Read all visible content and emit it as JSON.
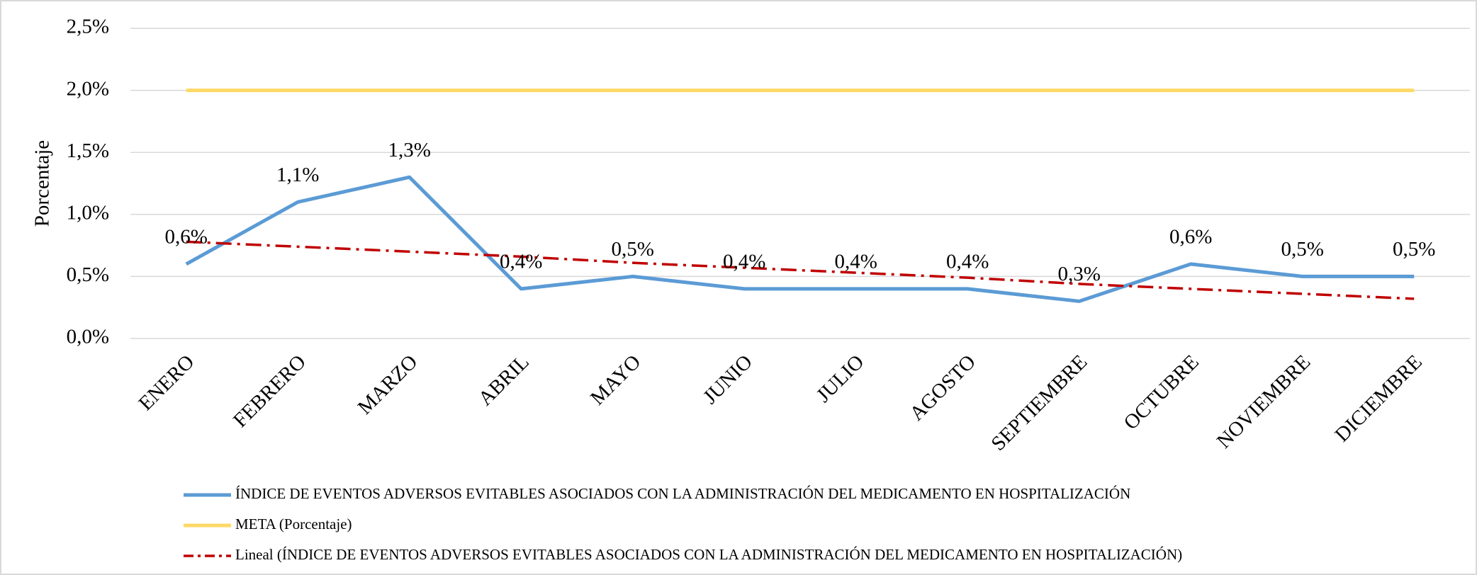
{
  "chart_data": {
    "type": "line",
    "y_label": "Porcentaje",
    "categories": [
      "ENERO",
      "FEBRERO",
      "MARZO",
      "ABRIL",
      "MAYO",
      "JUNIO",
      "JULIO",
      "AGOSTO",
      "SEPTIEMBRE",
      "OCTUBRE",
      "NOVIEMBRE",
      "DICIEMBRE"
    ],
    "series": [
      {
        "name": "ÍNDICE DE EVENTOS ADVERSOS EVITABLES ASOCIADOS CON LA ADMINISTRACIÓN DEL MEDICAMENTO EN HOSPITALIZACIÓN",
        "color": "#5b9bd5",
        "style": "solid",
        "values": [
          0.6,
          1.1,
          1.3,
          0.4,
          0.5,
          0.4,
          0.4,
          0.4,
          0.3,
          0.6,
          0.5,
          0.5
        ],
        "value_labels": [
          "0,6%",
          "1,1%",
          "1,3%",
          "0,4%",
          "0,5%",
          "0,4%",
          "0,4%",
          "0,4%",
          "0,3%",
          "0,6%",
          "0,5%",
          "0,5%"
        ]
      },
      {
        "name": "META (Porcentaje)",
        "color": "#ffd966",
        "style": "solid",
        "values": [
          2.0,
          2.0,
          2.0,
          2.0,
          2.0,
          2.0,
          2.0,
          2.0,
          2.0,
          2.0,
          2.0,
          2.0
        ]
      },
      {
        "name": "Lineal (ÍNDICE DE EVENTOS ADVERSOS EVITABLES ASOCIADOS CON LA ADMINISTRACIÓN DEL MEDICAMENTO EN HOSPITALIZACIÓN)",
        "color": "#c00000",
        "style": "dashdot",
        "values": [
          0.78,
          0.74,
          0.7,
          0.66,
          0.61,
          0.57,
          0.53,
          0.49,
          0.44,
          0.4,
          0.36,
          0.32
        ]
      }
    ],
    "ylim": [
      0,
      2.5
    ],
    "yticks": [
      {
        "value": 0,
        "label": "0,0%"
      },
      {
        "value": 0.5,
        "label": "0,5%"
      },
      {
        "value": 1.0,
        "label": "1,0%"
      },
      {
        "value": 1.5,
        "label": "1,5%"
      },
      {
        "value": 2.0,
        "label": "2,0%"
      },
      {
        "value": 2.5,
        "label": "2,5%"
      }
    ],
    "grid": true,
    "legend": "bottom"
  }
}
